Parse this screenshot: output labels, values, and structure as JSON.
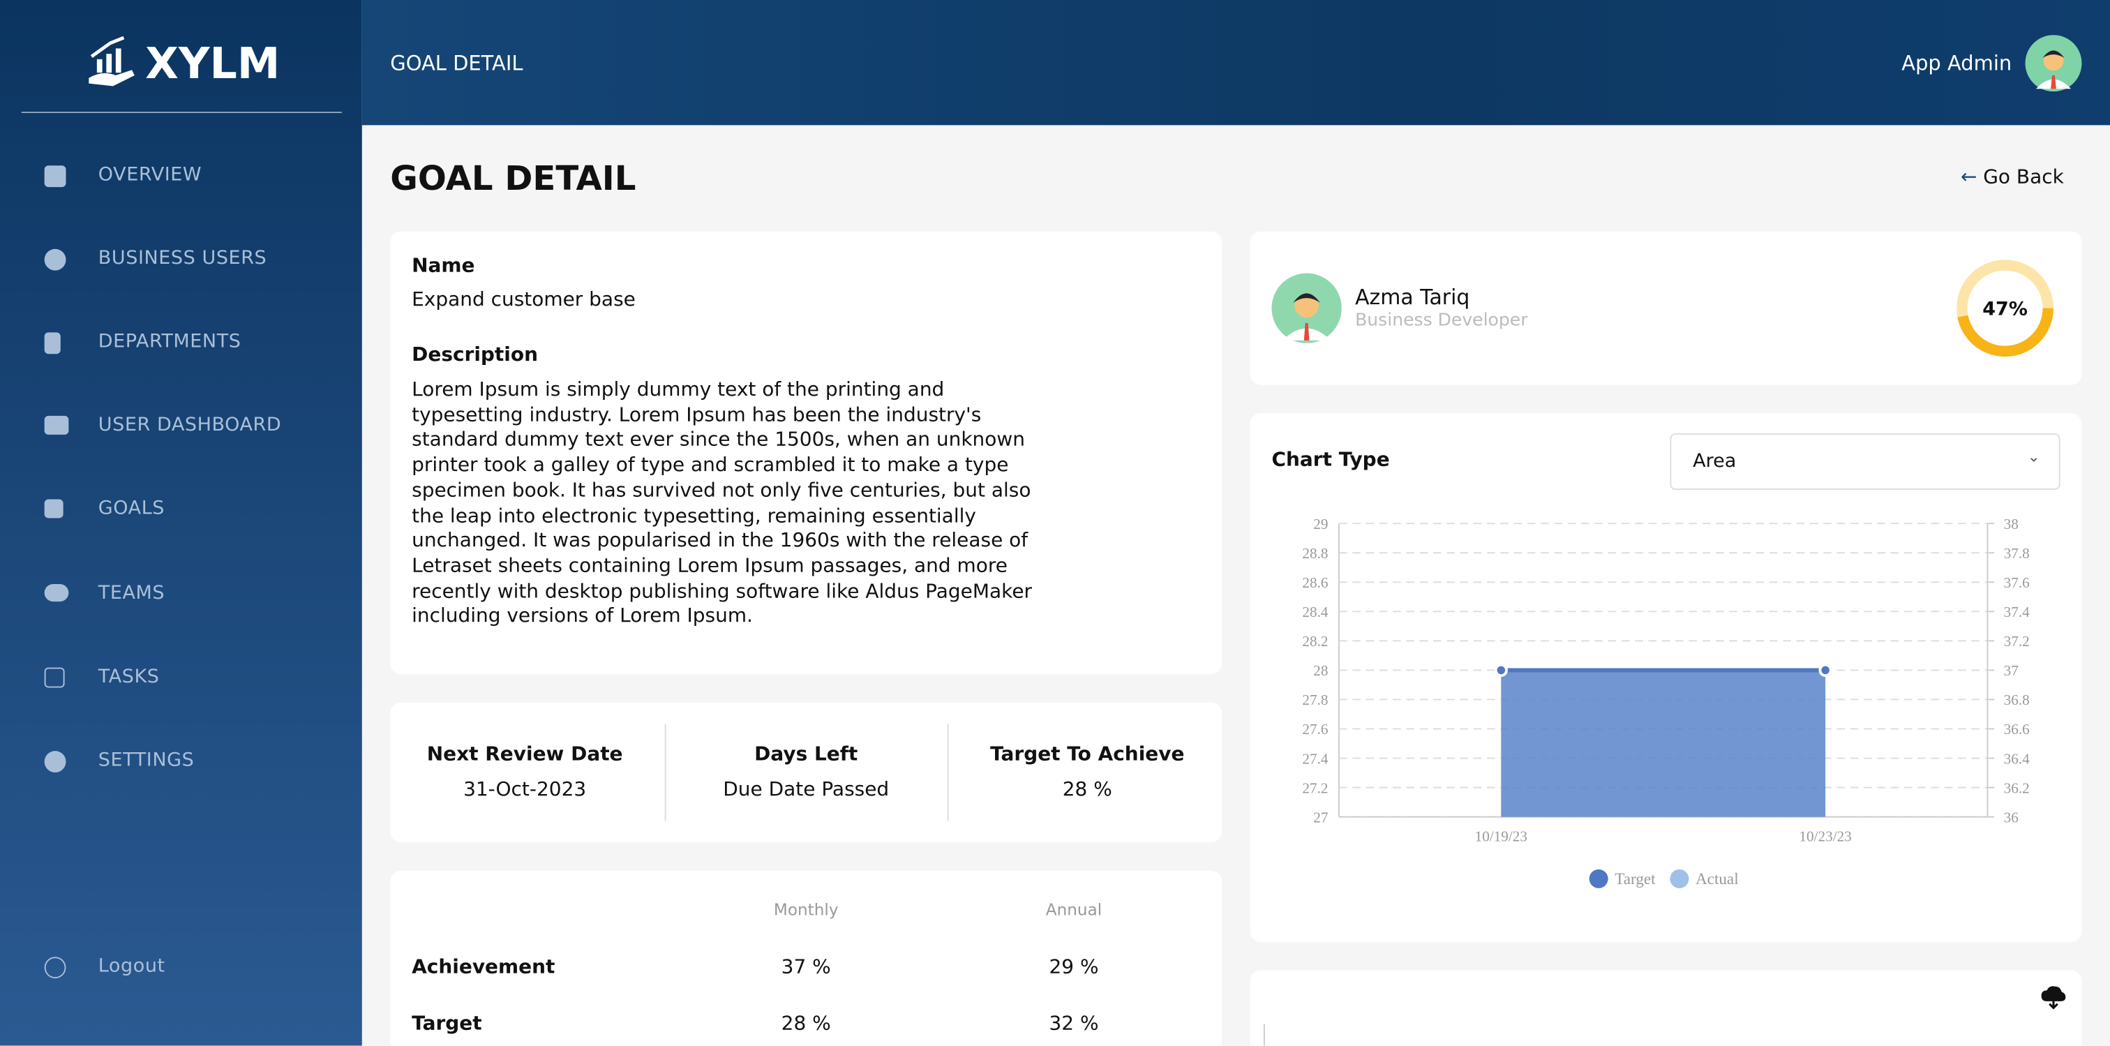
{
  "sidebar": {
    "brand": "XYLM",
    "menu": [
      "OVERVIEW",
      "BUSINESS USERS",
      "DEPARTMENTS",
      "USER DASHBOARD",
      "GOALS",
      "TEAMS",
      "TASKS",
      "SETTINGS"
    ],
    "logout": "Logout"
  },
  "header": {
    "title": "GOAL DETAIL",
    "user": "App Admin"
  },
  "page": {
    "title": "GOAL DETAIL",
    "back": "Go Back"
  },
  "goal": {
    "name_label": "Name",
    "name": "Expand customer base",
    "description_label": "Description",
    "description": "Lorem Ipsum is simply dummy text of the printing and typesetting industry. Lorem Ipsum has been the industry's standard dummy text ever since the 1500s, when an unknown printer took a galley of type and scrambled it to make a type specimen book. It has survived not only five centuries, but also the leap into electronic typesetting, remaining essentially unchanged. It was popularised in the 1960s with the release of Letraset sheets containing Lorem Ipsum passages, and more recently with desktop publishing software like Aldus PageMaker including versions of Lorem Ipsum."
  },
  "stats": [
    {
      "label": "Next Review Date",
      "value": "31-Oct-2023"
    },
    {
      "label": "Days Left",
      "value": "Due Date Passed"
    },
    {
      "label": "Target To Achieve",
      "value": "28 %"
    }
  ],
  "achievement": {
    "columns": [
      "Monthly",
      "Annual"
    ],
    "rows": [
      {
        "label": "Achievement",
        "values": [
          "37 %",
          "29 %"
        ]
      },
      {
        "label": "Target",
        "values": [
          "28 %",
          "32 %"
        ]
      }
    ]
  },
  "profile": {
    "name": "Azma Tariq",
    "role": "Business Developer",
    "progress": 47,
    "progress_label": "47%"
  },
  "chart_type": {
    "label": "Chart Type",
    "selected": "Area"
  },
  "chart_data": {
    "type": "area",
    "categories": [
      "10/19/23",
      "10/23/23"
    ],
    "series": [
      {
        "name": "Target",
        "color": "#4f78c4",
        "values": [
          28,
          28
        ]
      },
      {
        "name": "Actual",
        "color": "#9dc1e8",
        "values": [
          37,
          37
        ],
        "axis": "y2"
      }
    ],
    "ylim": [
      27,
      29
    ],
    "yticks": [
      27,
      27.2,
      27.4,
      27.6,
      27.8,
      28,
      28.2,
      28.4,
      28.6,
      28.8,
      29
    ],
    "y2lim": [
      36,
      38
    ],
    "y2ticks": [
      36,
      36.2,
      36.4,
      36.6,
      36.8,
      37,
      37.2,
      37.4,
      37.6,
      37.8,
      38
    ],
    "grid": true,
    "legend": "bottom"
  }
}
